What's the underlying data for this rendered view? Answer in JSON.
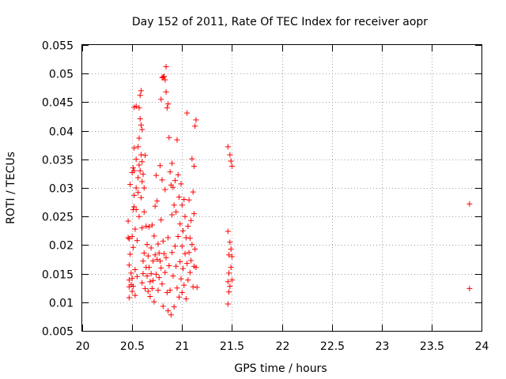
{
  "chart_data": {
    "type": "scatter",
    "title": "Day 152 of 2011, Rate Of TEC Index for receiver aopr",
    "xlabel": "GPS time / hours",
    "ylabel": "ROTI / TECUs",
    "xlim": [
      20,
      24
    ],
    "ylim": [
      0.005,
      0.055
    ],
    "xticks": [
      "20",
      "20.5",
      "21",
      "21.5",
      "22",
      "22.5",
      "23",
      "23.5",
      "24"
    ],
    "yticks": [
      "0.005",
      "0.01",
      "0.015",
      "0.02",
      "0.025",
      "0.03",
      "0.035",
      "0.04",
      "0.045",
      "0.05",
      "0.055"
    ],
    "grid": true,
    "marker": "+",
    "color": "#ff0000",
    "series": [
      {
        "name": "ROTI",
        "points": [
          [
            20.46,
            0.0242
          ],
          [
            20.46,
            0.0213
          ],
          [
            20.47,
            0.0211
          ],
          [
            20.47,
            0.0165
          ],
          [
            20.47,
            0.0139
          ],
          [
            20.47,
            0.0127
          ],
          [
            20.47,
            0.0108
          ],
          [
            20.48,
            0.0306
          ],
          [
            20.48,
            0.0184
          ],
          [
            20.49,
            0.0151
          ],
          [
            20.49,
            0.0131
          ],
          [
            20.5,
            0.0327
          ],
          [
            20.5,
            0.0215
          ],
          [
            20.5,
            0.0142
          ],
          [
            20.5,
            0.0119
          ],
          [
            20.51,
            0.0335
          ],
          [
            20.51,
            0.0262
          ],
          [
            20.51,
            0.0196
          ],
          [
            20.51,
            0.0128
          ],
          [
            20.52,
            0.0441
          ],
          [
            20.52,
            0.037
          ],
          [
            20.52,
            0.033
          ],
          [
            20.52,
            0.0287
          ],
          [
            20.52,
            0.0267
          ],
          [
            20.53,
            0.0228
          ],
          [
            20.53,
            0.0157
          ],
          [
            20.53,
            0.0112
          ],
          [
            20.54,
            0.0443
          ],
          [
            20.54,
            0.035
          ],
          [
            20.54,
            0.03
          ],
          [
            20.54,
            0.0262
          ],
          [
            20.55,
            0.0208
          ],
          [
            20.55,
            0.0145
          ],
          [
            20.56,
            0.0372
          ],
          [
            20.56,
            0.0318
          ],
          [
            20.56,
            0.0292
          ],
          [
            20.57,
            0.044
          ],
          [
            20.57,
            0.0387
          ],
          [
            20.57,
            0.034
          ],
          [
            20.57,
            0.025
          ],
          [
            20.58,
            0.0462
          ],
          [
            20.58,
            0.0421
          ],
          [
            20.58,
            0.033
          ],
          [
            20.59,
            0.047
          ],
          [
            20.59,
            0.041
          ],
          [
            20.59,
            0.0358
          ],
          [
            20.59,
            0.0283
          ],
          [
            20.6,
            0.0402
          ],
          [
            20.6,
            0.0346
          ],
          [
            20.6,
            0.0311
          ],
          [
            20.6,
            0.023
          ],
          [
            20.6,
            0.0134
          ],
          [
            20.61,
            0.0324
          ],
          [
            20.61,
            0.0172
          ],
          [
            20.61,
            0.015
          ],
          [
            20.62,
            0.03
          ],
          [
            20.62,
            0.0258
          ],
          [
            20.62,
            0.0186
          ],
          [
            20.63,
            0.0357
          ],
          [
            20.63,
            0.0124
          ],
          [
            20.64,
            0.0233
          ],
          [
            20.64,
            0.0161
          ],
          [
            20.65,
            0.0201
          ],
          [
            20.65,
            0.0146
          ],
          [
            20.66,
            0.0181
          ],
          [
            20.66,
            0.0119
          ],
          [
            20.67,
            0.0232
          ],
          [
            20.67,
            0.0161
          ],
          [
            20.68,
            0.0136
          ],
          [
            20.68,
            0.011
          ],
          [
            20.69,
            0.0195
          ],
          [
            20.69,
            0.015
          ],
          [
            20.7,
            0.0235
          ],
          [
            20.7,
            0.0124
          ],
          [
            20.71,
            0.0172
          ],
          [
            20.71,
            0.0138
          ],
          [
            20.72,
            0.0216
          ],
          [
            20.72,
            0.0101
          ],
          [
            20.73,
            0.0268
          ],
          [
            20.73,
            0.0183
          ],
          [
            20.74,
            0.0322
          ],
          [
            20.74,
            0.0149
          ],
          [
            20.75,
            0.0277
          ],
          [
            20.75,
            0.0175
          ],
          [
            20.76,
            0.0202
          ],
          [
            20.76,
            0.0121
          ],
          [
            20.77,
            0.0186
          ],
          [
            20.77,
            0.0143
          ],
          [
            20.78,
            0.0339
          ],
          [
            20.78,
            0.0172
          ],
          [
            20.79,
            0.0455
          ],
          [
            20.79,
            0.0244
          ],
          [
            20.79,
            0.016
          ],
          [
            20.8,
            0.0493
          ],
          [
            20.8,
            0.0314
          ],
          [
            20.8,
            0.0132
          ],
          [
            20.81,
            0.0494
          ],
          [
            20.81,
            0.0207
          ],
          [
            20.81,
            0.0093
          ],
          [
            20.82,
            0.0495
          ],
          [
            20.82,
            0.0185
          ],
          [
            20.83,
            0.0489
          ],
          [
            20.83,
            0.0297
          ],
          [
            20.83,
            0.0152
          ],
          [
            20.84,
            0.0512
          ],
          [
            20.84,
            0.0468
          ],
          [
            20.84,
            0.0178
          ],
          [
            20.85,
            0.044
          ],
          [
            20.85,
            0.0117
          ],
          [
            20.86,
            0.0447
          ],
          [
            20.86,
            0.0213
          ],
          [
            20.86,
            0.0085
          ],
          [
            20.87,
            0.0388
          ],
          [
            20.87,
            0.0164
          ],
          [
            20.88,
            0.0328
          ],
          [
            20.88,
            0.0121
          ],
          [
            20.89,
            0.0305
          ],
          [
            20.89,
            0.0078
          ],
          [
            20.9,
            0.0343
          ],
          [
            20.9,
            0.0253
          ],
          [
            20.9,
            0.0187
          ],
          [
            20.91,
            0.0301
          ],
          [
            20.91,
            0.0146
          ],
          [
            20.92,
            0.027
          ],
          [
            20.92,
            0.0092
          ],
          [
            20.93,
            0.0313
          ],
          [
            20.93,
            0.0198
          ],
          [
            20.94,
            0.0258
          ],
          [
            20.94,
            0.0163
          ],
          [
            20.95,
            0.0384
          ],
          [
            20.95,
            0.0125
          ],
          [
            20.96,
            0.0323
          ],
          [
            20.96,
            0.0215
          ],
          [
            20.97,
            0.0284
          ],
          [
            20.97,
            0.0109
          ],
          [
            20.98,
            0.0237
          ],
          [
            20.98,
            0.0171
          ],
          [
            20.99,
            0.0307
          ],
          [
            20.99,
            0.0141
          ],
          [
            21.0,
            0.027
          ],
          [
            21.0,
            0.0198
          ],
          [
            21.0,
            0.0117
          ],
          [
            21.01,
            0.0225
          ],
          [
            21.01,
            0.0159
          ],
          [
            21.02,
            0.028
          ],
          [
            21.02,
            0.013
          ],
          [
            21.03,
            0.025
          ],
          [
            21.03,
            0.0185
          ],
          [
            21.04,
            0.0213
          ],
          [
            21.04,
            0.0106
          ],
          [
            21.05,
            0.0431
          ],
          [
            21.05,
            0.0168
          ],
          [
            21.06,
            0.0233
          ],
          [
            21.06,
            0.0139
          ],
          [
            21.07,
            0.0279
          ],
          [
            21.07,
            0.0187
          ],
          [
            21.08,
            0.0212
          ],
          [
            21.08,
            0.0152
          ],
          [
            21.09,
            0.0243
          ],
          [
            21.09,
            0.0173
          ],
          [
            21.1,
            0.0351
          ],
          [
            21.1,
            0.0201
          ],
          [
            21.11,
            0.0293
          ],
          [
            21.11,
            0.0127
          ],
          [
            21.12,
            0.0338
          ],
          [
            21.12,
            0.0255
          ],
          [
            21.12,
            0.0163
          ],
          [
            21.13,
            0.0408
          ],
          [
            21.13,
            0.0193
          ],
          [
            21.14,
            0.0419
          ],
          [
            21.14,
            0.0161
          ],
          [
            21.15,
            0.0126
          ],
          [
            21.46,
            0.0372
          ],
          [
            21.46,
            0.0224
          ],
          [
            21.46,
            0.0136
          ],
          [
            21.46,
            0.0097
          ],
          [
            21.47,
            0.0183
          ],
          [
            21.47,
            0.0151
          ],
          [
            21.47,
            0.0118
          ],
          [
            21.48,
            0.0358
          ],
          [
            21.48,
            0.0205
          ],
          [
            21.48,
            0.0128
          ],
          [
            21.49,
            0.0347
          ],
          [
            21.49,
            0.0193
          ],
          [
            21.49,
            0.0161
          ],
          [
            21.5,
            0.0338
          ],
          [
            21.5,
            0.018
          ],
          [
            21.5,
            0.0139
          ],
          [
            23.88,
            0.0272
          ],
          [
            23.88,
            0.0124
          ]
        ]
      }
    ]
  }
}
